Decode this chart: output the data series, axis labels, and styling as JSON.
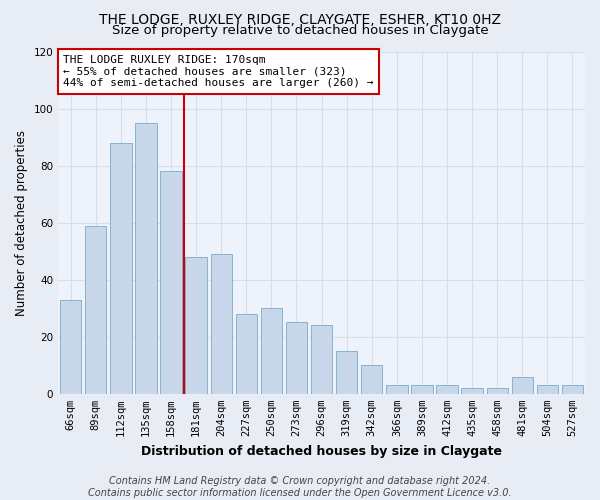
{
  "title1": "THE LODGE, RUXLEY RIDGE, CLAYGATE, ESHER, KT10 0HZ",
  "title2": "Size of property relative to detached houses in Claygate",
  "xlabel": "Distribution of detached houses by size in Claygate",
  "ylabel": "Number of detached properties",
  "categories": [
    "66sqm",
    "89sqm",
    "112sqm",
    "135sqm",
    "158sqm",
    "181sqm",
    "204sqm",
    "227sqm",
    "250sqm",
    "273sqm",
    "296sqm",
    "319sqm",
    "342sqm",
    "366sqm",
    "389sqm",
    "412sqm",
    "435sqm",
    "458sqm",
    "481sqm",
    "504sqm",
    "527sqm"
  ],
  "values": [
    33,
    59,
    88,
    95,
    78,
    48,
    49,
    28,
    30,
    25,
    24,
    15,
    10,
    3,
    3,
    3,
    2,
    2,
    6,
    3,
    3
  ],
  "bar_color": "#c8d8ea",
  "bar_edge_color": "#7aaac8",
  "vline_x": 5,
  "vline_color": "#cc0000",
  "annotation_text": "THE LODGE RUXLEY RIDGE: 170sqm\n← 55% of detached houses are smaller (323)\n44% of semi-detached houses are larger (260) →",
  "annotation_box_facecolor": "#ffffff",
  "annotation_box_edgecolor": "#cc0000",
  "ylim": [
    0,
    120
  ],
  "yticks": [
    0,
    20,
    40,
    60,
    80,
    100,
    120
  ],
  "footer": "Contains HM Land Registry data © Crown copyright and database right 2024.\nContains public sector information licensed under the Open Government Licence v3.0.",
  "bg_color": "#e8edf5",
  "plot_bg_color": "#eef2fa",
  "grid_color": "#d8dde8",
  "title1_fontsize": 10,
  "title2_fontsize": 9.5,
  "xlabel_fontsize": 9,
  "ylabel_fontsize": 8.5,
  "tick_fontsize": 7.5,
  "footer_fontsize": 7,
  "annot_fontsize": 8
}
